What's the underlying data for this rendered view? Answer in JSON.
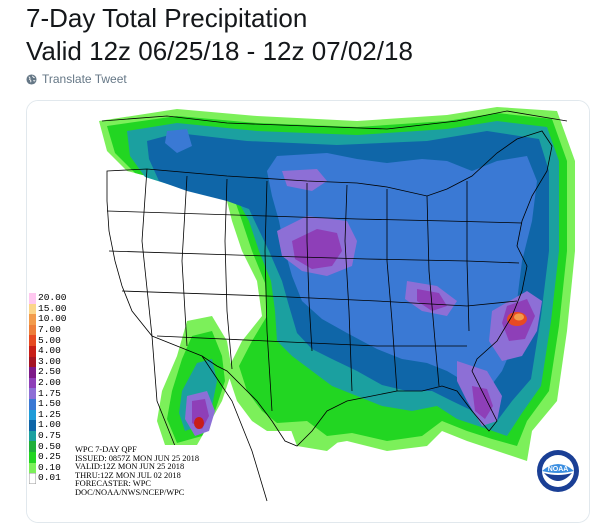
{
  "tweet": {
    "line1": "7-Day Total Precipitation",
    "line2": "Valid 12z 06/25/18 - 12z 07/02/18",
    "translate_label": "Translate Tweet",
    "translate_icon": "globe-icon"
  },
  "map": {
    "legend": [
      {
        "label": "20.00",
        "color": "#ffc8f0"
      },
      {
        "label": "15.00",
        "color": "#fbd58a"
      },
      {
        "label": "10.00",
        "color": "#f29b4b"
      },
      {
        "label": "7.00",
        "color": "#ed7e3a"
      },
      {
        "label": "5.00",
        "color": "#e74a22"
      },
      {
        "label": "4.00",
        "color": "#c81e18"
      },
      {
        "label": "3.00",
        "color": "#a51423"
      },
      {
        "label": "2.50",
        "color": "#7d1a88"
      },
      {
        "label": "2.00",
        "color": "#8e3fb8"
      },
      {
        "label": "1.75",
        "color": "#8d6fd6"
      },
      {
        "label": "1.50",
        "color": "#3a79d4"
      },
      {
        "label": "1.25",
        "color": "#1f9cd8"
      },
      {
        "label": "1.00",
        "color": "#0f66a8"
      },
      {
        "label": "0.75",
        "color": "#1ba0a0"
      },
      {
        "label": "0.50",
        "color": "#1fb03a"
      },
      {
        "label": "0.25",
        "color": "#22d622"
      },
      {
        "label": "0.10",
        "color": "#7cf05a"
      },
      {
        "label": "0.01",
        "color": "#ffffff"
      }
    ],
    "info": {
      "line1": "WPC 7-DAY QPF",
      "line2": "ISSUED: 0857Z MON JUN 25 2018",
      "line3": "VALID:12Z MON JUN 25 2018",
      "line4": "THRU:12Z MON JUL 02 2018",
      "line5": "FORECASTER: WPC",
      "line6": "DOC/NOAA/NWS/NCEP/WPC"
    },
    "logo_text": "NOAA",
    "colors": {
      "light_green": "#7cf05a",
      "green": "#22d622",
      "teal": "#1ba0a0",
      "blue": "#0f66a8",
      "light_blue": "#3a79d4",
      "purple": "#8e3fb8",
      "lavender": "#8d6fd6",
      "red": "#e74a22"
    }
  }
}
